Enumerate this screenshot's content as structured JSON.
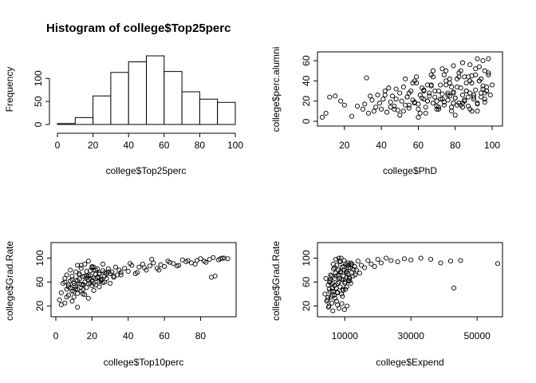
{
  "figure": {
    "background": "#ffffff",
    "ink": "#000000"
  },
  "chart_data": [
    {
      "id": "hist_top25",
      "type": "bar",
      "title": "Histogram of college$Top25perc",
      "xlabel": "college$Top25perc",
      "ylabel": "Frequency",
      "bins": [
        [
          0,
          10
        ],
        [
          10,
          20
        ],
        [
          20,
          30
        ],
        [
          30,
          40
        ],
        [
          40,
          50
        ],
        [
          50,
          60
        ],
        [
          60,
          70
        ],
        [
          70,
          80
        ],
        [
          80,
          90
        ],
        [
          90,
          100
        ]
      ],
      "values": [
        2,
        15,
        62,
        113,
        136,
        149,
        115,
        71,
        55,
        48
      ],
      "xlim": [
        0,
        100
      ],
      "ylim": [
        0,
        149
      ],
      "xticks": [
        0,
        20,
        40,
        60,
        80,
        100
      ],
      "yticks": [
        0,
        50,
        100
      ],
      "xtick_labels": [
        "0",
        "20",
        "40",
        "60",
        "80",
        "100"
      ],
      "ytick_labels": [
        "0",
        "50",
        "100"
      ]
    },
    {
      "id": "scatter_phd_alumni",
      "type": "scatter",
      "title": "",
      "xlabel": "college$PhD",
      "ylabel": "college$perc.alumni",
      "xlim": [
        8,
        103
      ],
      "ylim": [
        0,
        64
      ],
      "xticks": [
        20,
        40,
        60,
        80,
        100
      ],
      "yticks": [
        0,
        20,
        40,
        60
      ],
      "xtick_labels": [
        "20",
        "40",
        "60",
        "80",
        "100"
      ],
      "ytick_labels": [
        "0",
        "20",
        "40",
        "60"
      ],
      "x": [
        8,
        10,
        12,
        15,
        18,
        20,
        24,
        27,
        30,
        31,
        32,
        33,
        34,
        35,
        36,
        37,
        38,
        39,
        40,
        41,
        42,
        43,
        44,
        45,
        46,
        47,
        48,
        49,
        50,
        51,
        52,
        53,
        54,
        55,
        56,
        57,
        58,
        59,
        60,
        61,
        62,
        63,
        64,
        65,
        66,
        67,
        68,
        69,
        70,
        71,
        72,
        73,
        74,
        75,
        76,
        77,
        78,
        79,
        80,
        81,
        82,
        83,
        84,
        85,
        86,
        87,
        88,
        89,
        90,
        91,
        92,
        93,
        94,
        95,
        96,
        97,
        98,
        99,
        100,
        45,
        48,
        52,
        55,
        58,
        60,
        62,
        64,
        66,
        68,
        70,
        72,
        74,
        75,
        76,
        77,
        78,
        79,
        80,
        81,
        82,
        83,
        84,
        85,
        86,
        87,
        88,
        89,
        90,
        91,
        92,
        93,
        94,
        95,
        96,
        97,
        98,
        50,
        54,
        57,
        61,
        65,
        67,
        69,
        71,
        73,
        76,
        78,
        80,
        82,
        84,
        86,
        88,
        90,
        92,
        94,
        96,
        98,
        55,
        59,
        63,
        67,
        71,
        75,
        79,
        83,
        87,
        91,
        95,
        42,
        47,
        53,
        58,
        63,
        68,
        73,
        77,
        81,
        85,
        89,
        93,
        97,
        60,
        65,
        70,
        74,
        79,
        84,
        88,
        92,
        96
      ],
      "y": [
        4,
        8,
        24,
        25,
        20,
        16,
        5,
        15,
        12,
        17,
        43,
        8,
        25,
        21,
        10,
        14,
        26,
        18,
        12,
        22,
        30,
        9,
        33,
        19,
        25,
        15,
        22,
        11,
        28,
        20,
        34,
        16,
        24,
        13,
        30,
        21,
        19,
        38,
        17,
        26,
        23,
        31,
        14,
        20,
        28,
        35,
        18,
        24,
        12,
        30,
        22,
        27,
        16,
        36,
        21,
        25,
        14,
        29,
        23,
        42,
        18,
        33,
        26,
        20,
        38,
        15,
        28,
        45,
        22,
        31,
        17,
        40,
        24,
        35,
        19,
        30,
        48,
        26,
        36,
        14,
        32,
        10,
        28,
        40,
        12,
        33,
        8,
        25,
        44,
        15,
        36,
        19,
        50,
        28,
        42,
        10,
        55,
        23,
        34,
        48,
        16,
        58,
        21,
        30,
        44,
        12,
        38,
        26,
        52,
        18,
        40,
        28,
        60,
        22,
        34,
        46,
        6,
        24,
        38,
        8,
        20,
        46,
        30,
        14,
        52,
        26,
        34,
        6,
        44,
        18,
        30,
        56,
        24,
        10,
        42,
        28,
        62,
        16,
        44,
        22,
        36,
        12,
        40,
        18,
        50,
        24,
        46,
        32,
        26,
        12,
        42,
        18,
        30,
        50,
        22,
        38,
        16,
        44,
        10,
        54,
        30,
        4,
        36,
        20,
        46,
        28,
        14,
        40,
        62,
        50
      ]
    },
    {
      "id": "scatter_top10_grad",
      "type": "scatter",
      "title": "",
      "xlabel": "college$Top10perc",
      "ylabel": "college$Grad.Rate",
      "xlim": [
        0,
        97
      ],
      "ylim": [
        10,
        118
      ],
      "xticks": [
        0,
        20,
        40,
        60,
        80
      ],
      "yticks": [
        20,
        60,
        100
      ],
      "xtick_labels": [
        "0",
        "20",
        "40",
        "60",
        "80"
      ],
      "ytick_labels": [
        "20",
        "60",
        "100"
      ],
      "x": [
        2,
        3,
        4,
        5,
        5,
        6,
        6,
        7,
        7,
        8,
        8,
        9,
        9,
        10,
        10,
        11,
        11,
        12,
        12,
        13,
        13,
        14,
        14,
        15,
        15,
        16,
        16,
        17,
        17,
        18,
        18,
        19,
        19,
        20,
        20,
        21,
        21,
        22,
        22,
        23,
        24,
        25,
        26,
        27,
        28,
        29,
        30,
        31,
        32,
        33,
        34,
        35,
        36,
        38,
        40,
        42,
        44,
        46,
        48,
        50,
        52,
        54,
        56,
        58,
        60,
        62,
        65,
        68,
        70,
        72,
        75,
        78,
        80,
        83,
        85,
        87,
        90,
        92,
        95,
        3,
        6,
        9,
        12,
        15,
        18,
        21,
        24,
        27,
        30,
        8,
        11,
        14,
        17,
        20,
        23,
        26,
        29,
        10,
        13,
        16,
        19,
        22,
        25,
        28,
        12,
        15,
        18,
        21,
        24,
        5,
        7,
        9,
        11,
        13,
        15,
        17,
        19,
        21,
        23,
        25,
        27,
        10,
        12,
        14,
        16,
        18,
        20,
        22,
        24,
        26,
        32,
        36,
        41,
        45,
        49,
        53,
        57,
        63,
        67,
        73,
        77,
        82,
        86,
        88,
        91,
        93
      ],
      "y": [
        30,
        42,
        58,
        25,
        66,
        48,
        72,
        38,
        55,
        62,
        80,
        45,
        70,
        35,
        58,
        77,
        52,
        88,
        41,
        65,
        74,
        56,
        83,
        47,
        69,
        60,
        90,
        51,
        78,
        64,
        95,
        58,
        71,
        62,
        86,
        67,
        80,
        55,
        73,
        68,
        75,
        64,
        79,
        70,
        66,
        82,
        74,
        77,
        70,
        85,
        72,
        80,
        76,
        83,
        78,
        88,
        74,
        85,
        90,
        80,
        87,
        92,
        83,
        89,
        86,
        95,
        91,
        88,
        97,
        94,
        92,
        96,
        99,
        93,
        98,
        101,
        97,
        100,
        99,
        22,
        35,
        28,
        18,
        40,
        33,
        46,
        52,
        60,
        58,
        50,
        63,
        45,
        71,
        54,
        68,
        59,
        77,
        44,
        57,
        39,
        66,
        80,
        62,
        74,
        48,
        55,
        70,
        85,
        61,
        60,
        52,
        64,
        48,
        72,
        56,
        67,
        79,
        58,
        82,
        65,
        76,
        54,
        62,
        88,
        70,
        57,
        84,
        66,
        73,
        90,
        68,
        72,
        91,
        76,
        84,
        98,
        80,
        93,
        87,
        96,
        90,
        95,
        68,
        70,
        99,
        100
      ]
    },
    {
      "id": "scatter_expend_grad",
      "type": "scatter",
      "title": "",
      "xlabel": "college$Expend",
      "ylabel": "college$Grad.Rate",
      "xlim": [
        3186,
        56233
      ],
      "ylim": [
        10,
        118
      ],
      "xticks": [
        10000,
        30000,
        50000
      ],
      "yticks": [
        20,
        60,
        100
      ],
      "xtick_labels": [
        "10000",
        "30000",
        "50000"
      ],
      "ytick_labels": [
        "20",
        "60",
        "100"
      ],
      "x": [
        4000,
        4500,
        5000,
        5200,
        5500,
        5800,
        6000,
        6200,
        6400,
        6600,
        6800,
        7000,
        7200,
        7400,
        7600,
        7800,
        8000,
        8200,
        8400,
        8600,
        8800,
        9000,
        9200,
        9400,
        9600,
        9800,
        10000,
        10300,
        10600,
        10900,
        11200,
        11500,
        11800,
        12100,
        12500,
        13000,
        13500,
        14000,
        14500,
        15000,
        16000,
        17000,
        18000,
        19000,
        20000,
        21000,
        22500,
        24000,
        26000,
        28000,
        30000,
        33000,
        36000,
        39000,
        42000,
        45000,
        56233,
        4800,
        5300,
        5700,
        6100,
        6500,
        6900,
        7300,
        7700,
        8100,
        8500,
        8900,
        9300,
        9700,
        10100,
        10500,
        10900,
        11300,
        11700,
        5100,
        5600,
        6300,
        7100,
        7900,
        8700,
        9500,
        10400,
        11100,
        11900,
        12700,
        6000,
        6700,
        7400,
        8200,
        9000,
        9800,
        10600,
        11400,
        12200,
        13100,
        5400,
        6200,
        7000,
        7800,
        8600,
        9400,
        10200,
        11000,
        11800,
        4300,
        4900,
        5500,
        6400,
        7500,
        8300,
        9100,
        9900,
        10700,
        43000
      ],
      "y": [
        40,
        28,
        55,
        20,
        62,
        35,
        70,
        45,
        58,
        82,
        38,
        66,
        75,
        50,
        88,
        43,
        72,
        60,
        95,
        52,
        78,
        65,
        85,
        48,
        70,
        80,
        58,
        90,
        68,
        74,
        84,
        62,
        92,
        76,
        70,
        86,
        80,
        95,
        75,
        88,
        84,
        96,
        90,
        86,
        98,
        92,
        100,
        96,
        94,
        99,
        97,
        100,
        98,
        92,
        95,
        96,
        91,
        30,
        48,
        72,
        25,
        90,
        54,
        98,
        42,
        80,
        66,
        100,
        36,
        86,
        60,
        78,
        92,
        68,
        84,
        18,
        65,
        50,
        33,
        58,
        94,
        46,
        76,
        62,
        88,
        81,
        56,
        44,
        70,
        100,
        40,
        96,
        52,
        66,
        90,
        72,
        60,
        38,
        84,
        22,
        76,
        64,
        48,
        88,
        58,
        66,
        34,
        44,
        12,
        28,
        16,
        24,
        14,
        20,
        50
      ]
    }
  ]
}
